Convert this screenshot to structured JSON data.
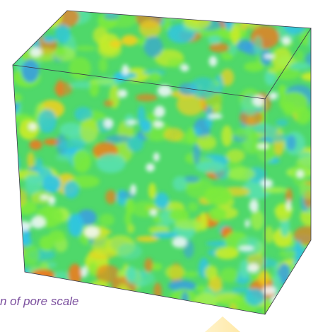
{
  "caption": "n of pore scale"
}
